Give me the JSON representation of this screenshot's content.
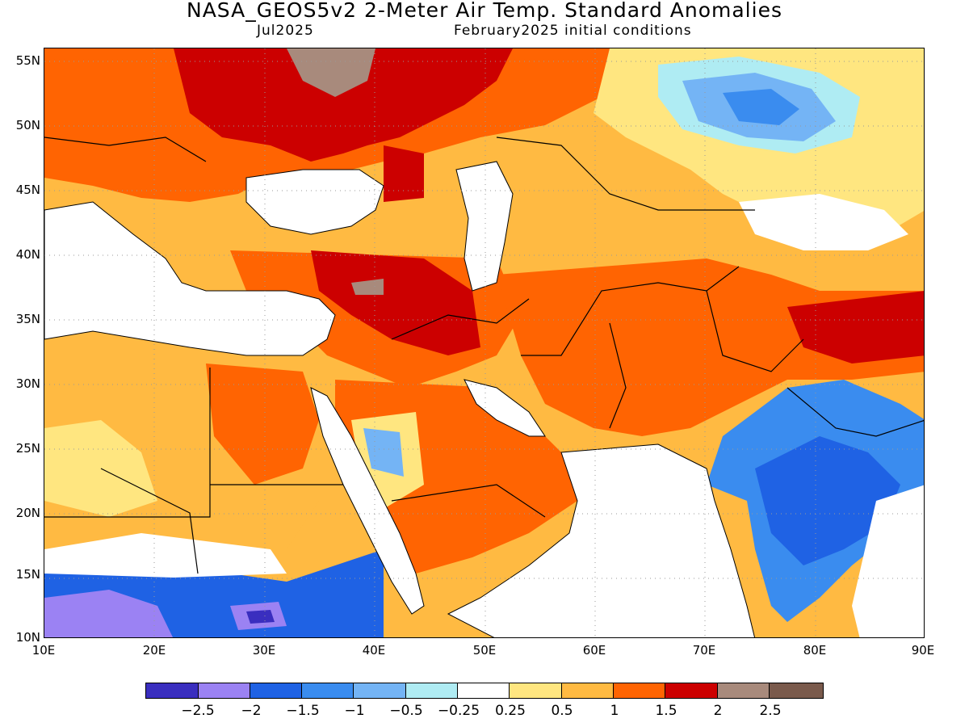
{
  "title": "NASA_GEOS5v2 2-Meter Air Temp. Standard Anomalies",
  "subtitle_left": "Jul2025",
  "subtitle_right": "February2025 initial conditions",
  "lat_labels": [
    "55N",
    "50N",
    "45N",
    "40N",
    "35N",
    "30N",
    "25N",
    "20N",
    "15N",
    "10N"
  ],
  "lon_labels": [
    "10E",
    "20E",
    "30E",
    "40E",
    "50E",
    "60E",
    "70E",
    "80E",
    "90E"
  ],
  "colorbar": {
    "colors": [
      "#3a2ebf",
      "#9b82f3",
      "#1f62e4",
      "#3a8cef",
      "#74b4f5",
      "#afecf3",
      "#ffffff",
      "#ffe680",
      "#ffba42",
      "#ff6402",
      "#cc0000",
      "#a88a7c",
      "#7a5a4c"
    ],
    "labels": [
      "-2.5",
      "-2",
      "-1.5",
      "-1",
      "-0.5",
      "-0.25",
      "0.25",
      "0.5",
      "1",
      "1.5",
      "2",
      "2.5"
    ]
  },
  "colors": {
    "ocean": "#ffffff",
    "coast": "#000000",
    "grid": "#9a9a9a"
  }
}
